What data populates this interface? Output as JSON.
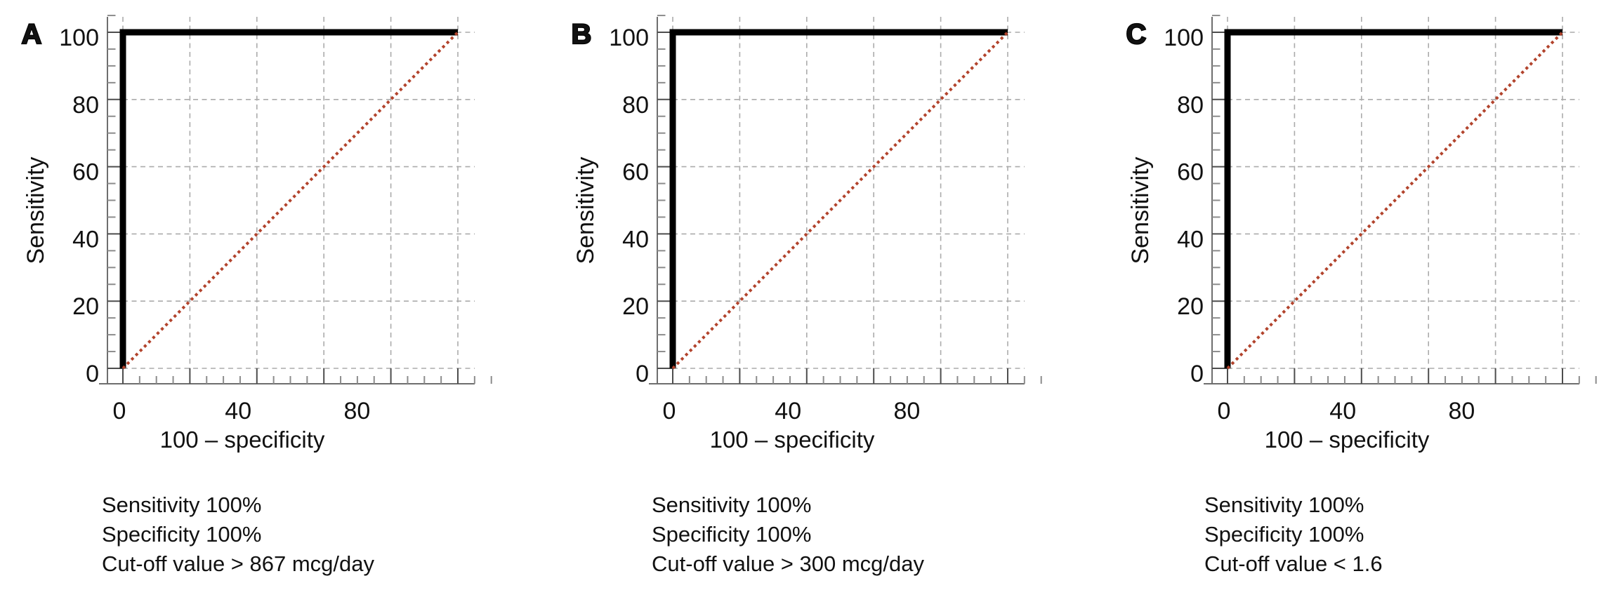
{
  "colors": {
    "background": "#ffffff",
    "roc_curve": "#000000",
    "reference_diagonal": "#b2432c",
    "gridline": "#ababab",
    "axis_line": "#6e6e6e",
    "major_tick": "#4d4d4d",
    "minor_tick": "#8c8c8c",
    "text": "#111111"
  },
  "chart_data": [
    {
      "type": "line",
      "panel_label": "A",
      "title": "",
      "xlabel": "100 – specificity",
      "ylabel": "Sensitivity",
      "xlim": [
        0,
        110
      ],
      "ylim": [
        0,
        105
      ],
      "x_major_ticks": [
        0,
        20,
        40,
        60,
        80,
        100
      ],
      "y_major_ticks": [
        0,
        20,
        40,
        60,
        80,
        100
      ],
      "x_tick_labels": [
        {
          "value": 0,
          "label": "0"
        },
        {
          "value": 40,
          "label": "40"
        },
        {
          "value": 80,
          "label": "80"
        }
      ],
      "y_tick_labels": [
        {
          "value": 0,
          "label": "0"
        },
        {
          "value": 20,
          "label": "20"
        },
        {
          "value": 40,
          "label": "40"
        },
        {
          "value": 60,
          "label": "60"
        },
        {
          "value": 80,
          "label": "80"
        },
        {
          "value": 100,
          "label": "100"
        }
      ],
      "minor_tick_step": 5,
      "grid": true,
      "legend_position": "none",
      "series": [
        {
          "name": "ROC curve",
          "x": [
            0,
            0,
            100
          ],
          "y": [
            0,
            100,
            100
          ],
          "color": "#000000",
          "style": "solid",
          "width": 9
        },
        {
          "name": "Chance diagonal",
          "x": [
            0,
            100
          ],
          "y": [
            0,
            100
          ],
          "color": "#b2432c",
          "style": "dotted",
          "width": 4
        }
      ],
      "annotations": {
        "sensitivity": "Sensitivity 100%",
        "specificity": "Specificity 100%",
        "cutoff": "Cut-off value > 867 mcg/day"
      }
    },
    {
      "type": "line",
      "panel_label": "B",
      "title": "",
      "xlabel": "100 – specificity",
      "ylabel": "Sensitivity",
      "xlim": [
        0,
        110
      ],
      "ylim": [
        0,
        105
      ],
      "x_major_ticks": [
        0,
        20,
        40,
        60,
        80,
        100
      ],
      "y_major_ticks": [
        0,
        20,
        40,
        60,
        80,
        100
      ],
      "x_tick_labels": [
        {
          "value": 0,
          "label": "0"
        },
        {
          "value": 40,
          "label": "40"
        },
        {
          "value": 80,
          "label": "80"
        }
      ],
      "y_tick_labels": [
        {
          "value": 0,
          "label": "0"
        },
        {
          "value": 20,
          "label": "20"
        },
        {
          "value": 40,
          "label": "40"
        },
        {
          "value": 60,
          "label": "60"
        },
        {
          "value": 80,
          "label": "80"
        },
        {
          "value": 100,
          "label": "100"
        }
      ],
      "minor_tick_step": 5,
      "grid": true,
      "legend_position": "none",
      "series": [
        {
          "name": "ROC curve",
          "x": [
            0,
            0,
            100
          ],
          "y": [
            0,
            100,
            100
          ],
          "color": "#000000",
          "style": "solid",
          "width": 9
        },
        {
          "name": "Chance diagonal",
          "x": [
            0,
            100
          ],
          "y": [
            0,
            100
          ],
          "color": "#b2432c",
          "style": "dotted",
          "width": 4
        }
      ],
      "annotations": {
        "sensitivity": "Sensitivity 100%",
        "specificity": "Specificity 100%",
        "cutoff": "Cut-off value > 300 mcg/day"
      }
    },
    {
      "type": "line",
      "panel_label": "C",
      "title": "",
      "xlabel": "100 – specificity",
      "ylabel": "Sensitivity",
      "xlim": [
        0,
        110
      ],
      "ylim": [
        0,
        105
      ],
      "x_major_ticks": [
        0,
        20,
        40,
        60,
        80,
        100
      ],
      "y_major_ticks": [
        0,
        20,
        40,
        60,
        80,
        100
      ],
      "x_tick_labels": [
        {
          "value": 0,
          "label": "0"
        },
        {
          "value": 40,
          "label": "40"
        },
        {
          "value": 80,
          "label": "80"
        }
      ],
      "y_tick_labels": [
        {
          "value": 0,
          "label": "0"
        },
        {
          "value": 20,
          "label": "20"
        },
        {
          "value": 40,
          "label": "40"
        },
        {
          "value": 60,
          "label": "60"
        },
        {
          "value": 80,
          "label": "80"
        },
        {
          "value": 100,
          "label": "100"
        }
      ],
      "minor_tick_step": 5,
      "grid": true,
      "legend_position": "none",
      "series": [
        {
          "name": "ROC curve",
          "x": [
            0,
            0,
            100
          ],
          "y": [
            0,
            100,
            100
          ],
          "color": "#000000",
          "style": "solid",
          "width": 9
        },
        {
          "name": "Chance diagonal",
          "x": [
            0,
            100
          ],
          "y": [
            0,
            100
          ],
          "color": "#b2432c",
          "style": "dotted",
          "width": 4
        }
      ],
      "annotations": {
        "sensitivity": "Sensitivity 100%",
        "specificity": "Specificity 100%",
        "cutoff": "Cut-off value < 1.6"
      }
    }
  ]
}
